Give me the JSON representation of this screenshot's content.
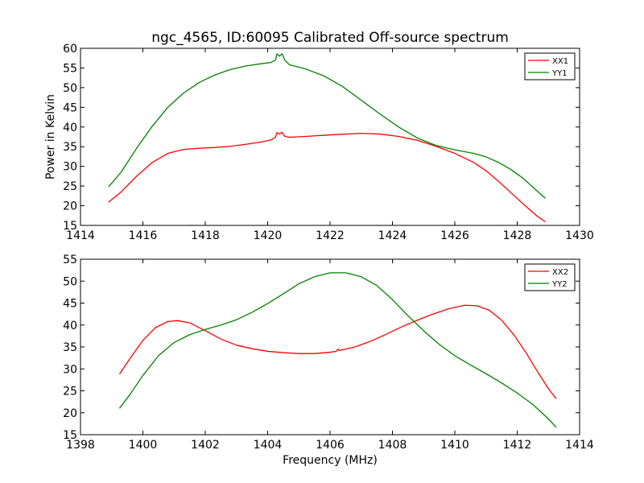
{
  "figure": {
    "title": "ngc_4565, ID:60095 Calibrated Off-source spectrum"
  },
  "chart_data": [
    {
      "type": "line",
      "title": "ngc_4565, ID:60095 Calibrated Off-source spectrum",
      "xlabel": "",
      "ylabel": "Power in Kelvin",
      "xlim": [
        1414,
        1430
      ],
      "ylim": [
        15,
        60
      ],
      "xticks": [
        1414,
        1416,
        1418,
        1420,
        1422,
        1424,
        1426,
        1428,
        1430
      ],
      "yticks": [
        15,
        20,
        25,
        30,
        35,
        40,
        45,
        50,
        55,
        60
      ],
      "legend_position": "top-right",
      "series": [
        {
          "name": "XX1",
          "color": "#ff0000",
          "points": [
            [
              1414.9,
              20.9
            ],
            [
              1415.3,
              23.5
            ],
            [
              1415.8,
              27.5
            ],
            [
              1416.3,
              31.0
            ],
            [
              1416.8,
              33.3
            ],
            [
              1417.3,
              34.3
            ],
            [
              1417.8,
              34.6
            ],
            [
              1418.3,
              34.8
            ],
            [
              1418.8,
              35.1
            ],
            [
              1419.3,
              35.6
            ],
            [
              1419.8,
              36.2
            ],
            [
              1420.1,
              36.7
            ],
            [
              1420.25,
              37.4
            ],
            [
              1420.3,
              38.6
            ],
            [
              1420.38,
              38.2
            ],
            [
              1420.46,
              38.7
            ],
            [
              1420.55,
              37.6
            ],
            [
              1420.7,
              37.4
            ],
            [
              1421.2,
              37.6
            ],
            [
              1422.0,
              38.0
            ],
            [
              1423.0,
              38.4
            ],
            [
              1423.6,
              38.2
            ],
            [
              1424.2,
              37.6
            ],
            [
              1424.8,
              36.6
            ],
            [
              1425.4,
              35.1
            ],
            [
              1426.0,
              33.3
            ],
            [
              1426.6,
              31.0
            ],
            [
              1427.0,
              28.9
            ],
            [
              1427.4,
              26.2
            ],
            [
              1427.8,
              23.3
            ],
            [
              1428.2,
              20.4
            ],
            [
              1428.6,
              17.6
            ],
            [
              1428.9,
              15.9
            ]
          ]
        },
        {
          "name": "YY1",
          "color": "#008000",
          "points": [
            [
              1414.9,
              24.8
            ],
            [
              1415.3,
              28.5
            ],
            [
              1415.8,
              34.6
            ],
            [
              1416.3,
              40.2
            ],
            [
              1416.8,
              45.0
            ],
            [
              1417.3,
              48.6
            ],
            [
              1417.8,
              51.3
            ],
            [
              1418.3,
              53.2
            ],
            [
              1418.8,
              54.6
            ],
            [
              1419.3,
              55.5
            ],
            [
              1419.8,
              56.1
            ],
            [
              1420.1,
              56.4
            ],
            [
              1420.25,
              57.0
            ],
            [
              1420.3,
              58.6
            ],
            [
              1420.38,
              58.0
            ],
            [
              1420.46,
              58.6
            ],
            [
              1420.55,
              57.0
            ],
            [
              1420.7,
              55.8
            ],
            [
              1421.2,
              54.8
            ],
            [
              1421.8,
              53.0
            ],
            [
              1422.4,
              50.3
            ],
            [
              1423.0,
              46.8
            ],
            [
              1423.6,
              43.3
            ],
            [
              1424.2,
              40.0
            ],
            [
              1424.8,
              37.2
            ],
            [
              1425.4,
              35.3
            ],
            [
              1426.0,
              34.2
            ],
            [
              1426.6,
              33.3
            ],
            [
              1427.0,
              32.4
            ],
            [
              1427.4,
              31.0
            ],
            [
              1427.8,
              29.2
            ],
            [
              1428.2,
              26.9
            ],
            [
              1428.6,
              24.0
            ],
            [
              1428.9,
              21.9
            ]
          ]
        }
      ]
    },
    {
      "type": "line",
      "title": "",
      "xlabel": "Frequency (MHz)",
      "ylabel": "",
      "xlim": [
        1398,
        1414
      ],
      "ylim": [
        15,
        55
      ],
      "xticks": [
        1398,
        1400,
        1402,
        1404,
        1406,
        1408,
        1410,
        1412,
        1414
      ],
      "yticks": [
        15,
        20,
        25,
        30,
        35,
        40,
        45,
        50,
        55
      ],
      "legend_position": "top-right",
      "series": [
        {
          "name": "XX2",
          "color": "#ff0000",
          "points": [
            [
              1399.25,
              28.8
            ],
            [
              1399.6,
              32.5
            ],
            [
              1400.0,
              36.5
            ],
            [
              1400.4,
              39.4
            ],
            [
              1400.8,
              40.8
            ],
            [
              1401.1,
              41.0
            ],
            [
              1401.5,
              40.5
            ],
            [
              1402.0,
              38.7
            ],
            [
              1402.5,
              36.8
            ],
            [
              1403.0,
              35.4
            ],
            [
              1403.5,
              34.6
            ],
            [
              1404.0,
              34.0
            ],
            [
              1404.5,
              33.7
            ],
            [
              1405.0,
              33.5
            ],
            [
              1405.5,
              33.5
            ],
            [
              1406.0,
              33.8
            ],
            [
              1406.2,
              34.0
            ],
            [
              1406.25,
              34.5
            ],
            [
              1406.3,
              34.2
            ],
            [
              1406.8,
              35.0
            ],
            [
              1407.3,
              36.3
            ],
            [
              1407.8,
              37.9
            ],
            [
              1408.3,
              39.6
            ],
            [
              1408.8,
              41.1
            ],
            [
              1409.3,
              42.5
            ],
            [
              1409.8,
              43.7
            ],
            [
              1410.3,
              44.5
            ],
            [
              1410.7,
              44.4
            ],
            [
              1411.1,
              43.4
            ],
            [
              1411.5,
              41.1
            ],
            [
              1411.9,
              37.7
            ],
            [
              1412.3,
              33.5
            ],
            [
              1412.7,
              28.8
            ],
            [
              1413.0,
              25.5
            ],
            [
              1413.25,
              23.2
            ]
          ]
        },
        {
          "name": "YY2",
          "color": "#008000",
          "points": [
            [
              1399.25,
              21.0
            ],
            [
              1399.6,
              24.3
            ],
            [
              1400.0,
              28.5
            ],
            [
              1400.5,
              33.0
            ],
            [
              1401.0,
              36.0
            ],
            [
              1401.5,
              37.8
            ],
            [
              1402.0,
              39.0
            ],
            [
              1402.5,
              40.0
            ],
            [
              1403.0,
              41.2
            ],
            [
              1403.5,
              42.9
            ],
            [
              1404.0,
              44.9
            ],
            [
              1404.5,
              47.1
            ],
            [
              1405.0,
              49.4
            ],
            [
              1405.5,
              51.0
            ],
            [
              1406.0,
              51.9
            ],
            [
              1406.5,
              51.9
            ],
            [
              1407.0,
              51.0
            ],
            [
              1407.5,
              49.0
            ],
            [
              1408.0,
              45.8
            ],
            [
              1408.5,
              42.1
            ],
            [
              1409.0,
              38.7
            ],
            [
              1409.5,
              35.6
            ],
            [
              1410.0,
              33.0
            ],
            [
              1410.5,
              30.9
            ],
            [
              1411.0,
              28.9
            ],
            [
              1411.5,
              26.8
            ],
            [
              1412.0,
              24.5
            ],
            [
              1412.5,
              21.9
            ],
            [
              1413.0,
              18.6
            ],
            [
              1413.25,
              16.7
            ]
          ]
        }
      ]
    }
  ]
}
